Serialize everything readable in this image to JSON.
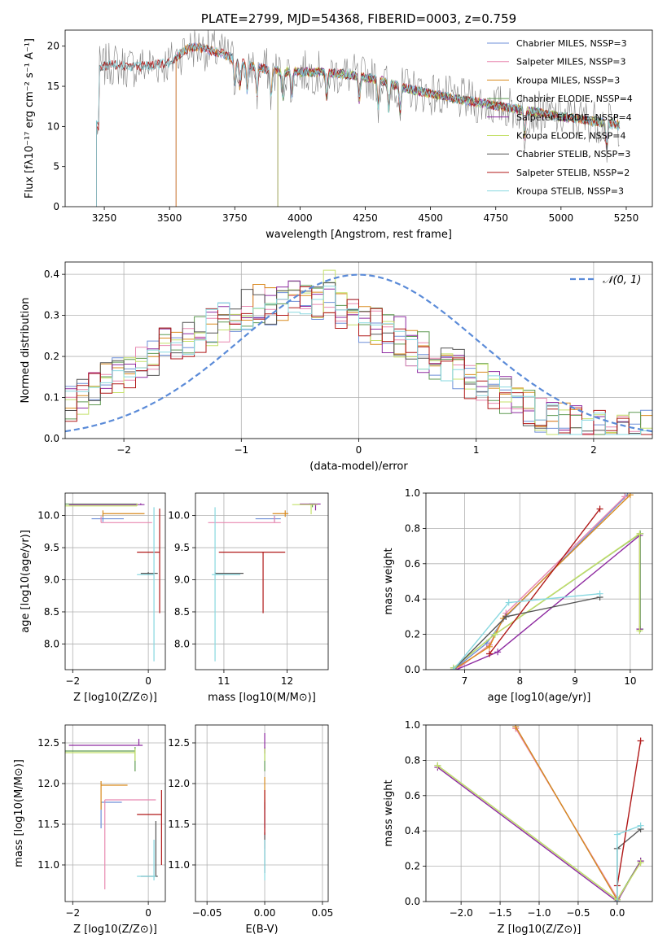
{
  "colors": {
    "Chabrier MILES": "#6e8fd8",
    "Salpeter MILES": "#e888b0",
    "Kroupa MILES": "#d98a1c",
    "Chabrier ELODIE": "#5e9a52",
    "Salpeter ELODIE": "#8e2aa0",
    "Kroupa ELODIE": "#c4e06a",
    "Chabrier STELIB": "#555555",
    "Salpeter STELIB": "#b01818",
    "Kroupa STELIB": "#88d8e0",
    "data": "#808080",
    "gaussian": "#5b8bd8"
  },
  "chart_data": [
    {
      "id": "spectrum",
      "type": "line",
      "title": "PLATE=2799, MJD=54368, FIBERID=0003, z=0.759",
      "xlabel": "wavelength [Angstrom, rest frame]",
      "ylabel": "Flux [fλ10⁻¹⁷ erg cm⁻² s⁻¹ A⁻¹]",
      "xlim": [
        3100,
        5350
      ],
      "ylim": [
        0,
        22
      ],
      "xticks": [
        3250,
        3500,
        3750,
        4000,
        4250,
        4500,
        4750,
        5000,
        5250
      ],
      "yticks": [
        0,
        5,
        10,
        15,
        20
      ],
      "grid": false,
      "legend_position": "top-right",
      "legend": [
        "Chabrier MILES, NSSP=3",
        "Salpeter MILES, NSSP=3",
        "Kroupa MILES, NSSP=3",
        "Chabrier ELODIE, NSSP=4",
        "Salpeter ELODIE, NSSP=4",
        "Kroupa ELODIE, NSSP=4",
        "Chabrier STELIB, NSSP=3",
        "Salpeter STELIB, NSSP=2",
        "Kroupa STELIB, NSSP=3"
      ],
      "continuum": {
        "x": [
          3230,
          3280,
          3350,
          3420,
          3500,
          3560,
          3600,
          3700,
          3800,
          3900,
          4000,
          4100,
          4200,
          4300,
          4400,
          4500,
          4600,
          4700,
          4800,
          4900,
          5000,
          5100,
          5200,
          5230
        ],
        "y": [
          17.3,
          17.8,
          17.4,
          17.6,
          17.9,
          19.6,
          19.9,
          19.1,
          17.6,
          16.9,
          16.8,
          16.7,
          16.4,
          15.8,
          14.8,
          14.1,
          13.4,
          12.9,
          12.3,
          11.8,
          11.2,
          10.8,
          10.3,
          10.1
        ]
      },
      "model_starts": {
        "MILES": 3525,
        "ELODIE": 3915,
        "STELIB": 3220,
        "data": 3220
      },
      "model_ends": {
        "MILES": 5225,
        "ELODIE": 5225,
        "STELIB": 5225,
        "data": 5225
      }
    },
    {
      "id": "residuals",
      "type": "step",
      "xlabel": "(data-model)/error",
      "ylabel": "Normed distribution",
      "xlim": [
        -2.5,
        2.5
      ],
      "ylim": [
        0,
        0.43
      ],
      "xticks": [
        -2,
        -1,
        0,
        1,
        2
      ],
      "yticks": [
        0.0,
        0.1,
        0.2,
        0.3,
        0.4
      ],
      "grid": true,
      "legend_position": "top-right",
      "legend": [
        "𝒩(0, 1)"
      ],
      "gaussian": {
        "mean": 0,
        "sigma": 1
      },
      "bin_width": 0.1,
      "bin_start": -2.5,
      "base_profile": [
        0.08,
        0.1,
        0.11,
        0.12,
        0.13,
        0.14,
        0.15,
        0.16,
        0.17,
        0.18,
        0.19,
        0.2,
        0.21,
        0.22,
        0.225,
        0.23,
        0.24,
        0.25,
        0.26,
        0.27,
        0.28,
        0.29,
        0.3,
        0.305,
        0.31,
        0.31,
        0.315,
        0.32,
        0.32,
        0.325,
        0.325,
        0.32,
        0.32,
        0.31,
        0.3,
        0.29,
        0.28,
        0.27,
        0.26,
        0.25,
        0.24,
        0.235,
        0.225,
        0.21,
        0.2,
        0.19,
        0.18,
        0.17,
        0.16,
        0.15,
        0.14,
        0.13,
        0.12,
        0.11,
        0.1,
        0.09,
        0.08,
        0.07,
        0.06,
        0.055,
        0.05,
        0.045,
        0.04,
        0.035,
        0.03,
        0.028,
        0.025,
        0.023,
        0.02,
        0.02,
        0.02,
        0.02,
        0.02
      ],
      "peaks": [
        {
          "model": "Kroupa ELODIE",
          "x": -0.3,
          "y": 0.41
        }
      ]
    },
    {
      "id": "age-vs-Z",
      "type": "errorbar",
      "xlabel": "Z [log10(Z/Z⊙)]",
      "ylabel": "age  [log10(age/yr)]",
      "xlim": [
        -2.2,
        0.45
      ],
      "ylim": [
        7.6,
        10.35
      ],
      "xticks": [
        -2,
        0
      ],
      "yticks": [
        8.0,
        8.5,
        9.0,
        9.5,
        10.0
      ],
      "grid": true,
      "points": [
        {
          "model": "Chabrier MILES",
          "x": -1.2,
          "xerr": [
            0.3,
            0.55
          ],
          "y": 9.95,
          "yerr": [
            0.05,
            0.05
          ]
        },
        {
          "model": "Salpeter MILES",
          "x": -1.25,
          "xerr": [
            0.0,
            1.35
          ],
          "y": 9.89,
          "yerr": [
            0.0,
            0.1
          ]
        },
        {
          "model": "Kroupa MILES",
          "x": -1.2,
          "xerr": [
            0.0,
            1.1
          ],
          "y": 10.03,
          "yerr": [
            0.05,
            0.05
          ]
        },
        {
          "model": "Chabrier ELODIE",
          "x": -0.3,
          "xerr": [
            1.9,
            0.0
          ],
          "y": 10.18,
          "yerr": [
            0.02,
            0.0
          ]
        },
        {
          "model": "Salpeter ELODIE",
          "x": -0.2,
          "xerr": [
            1.9,
            0.1
          ],
          "y": 10.17,
          "yerr": [
            0.0,
            0.02
          ]
        },
        {
          "model": "Kroupa ELODIE",
          "x": -0.3,
          "xerr": [
            1.9,
            0.0
          ],
          "y": 10.15,
          "yerr": [
            0.0,
            0.04
          ]
        },
        {
          "model": "Chabrier STELIB",
          "x": 0.0,
          "xerr": [
            0.2,
            0.25
          ],
          "y": 9.1,
          "yerr": [
            0.02,
            0.02
          ]
        },
        {
          "model": "Salpeter STELIB",
          "x": 0.3,
          "xerr": [
            0.6,
            0.0
          ],
          "y": 9.43,
          "yerr": [
            0.95,
            0.68
          ]
        },
        {
          "model": "Kroupa STELIB",
          "x": 0.15,
          "xerr": [
            0.45,
            0.0
          ],
          "y": 9.08,
          "yerr": [
            1.35,
            1.05
          ]
        }
      ]
    },
    {
      "id": "age-vs-mass",
      "type": "errorbar",
      "xlabel": "mass [log10(M/M⊙)]",
      "ylabel": "",
      "xlim": [
        10.55,
        12.65
      ],
      "ylim": [
        7.6,
        10.35
      ],
      "xticks": [
        11,
        12
      ],
      "yticks": [
        8.0,
        8.5,
        9.0,
        9.5,
        10.0
      ],
      "grid": true,
      "points": [
        {
          "model": "Chabrier MILES",
          "x": 11.8,
          "xerr": [
            0.3,
            0.1
          ],
          "y": 9.95,
          "yerr": [
            0.05,
            0.05
          ]
        },
        {
          "model": "Salpeter MILES",
          "x": 11.8,
          "xerr": [
            1.05,
            0.1
          ],
          "y": 9.89,
          "yerr": [
            0.0,
            0.1
          ]
        },
        {
          "model": "Kroupa MILES",
          "x": 11.97,
          "xerr": [
            0.2,
            0.05
          ],
          "y": 10.03,
          "yerr": [
            0.05,
            0.05
          ]
        },
        {
          "model": "Chabrier ELODIE",
          "x": 12.4,
          "xerr": [
            0.05,
            0.05
          ],
          "y": 10.18,
          "yerr": [
            0.05,
            0.0
          ]
        },
        {
          "model": "Salpeter ELODIE",
          "x": 12.45,
          "xerr": [
            0.25,
            0.08
          ],
          "y": 10.18,
          "yerr": [
            0.1,
            0.0
          ]
        },
        {
          "model": "Kroupa ELODIE",
          "x": 12.38,
          "xerr": [
            0.3,
            0.1
          ],
          "y": 10.17,
          "yerr": [
            0.15,
            0.0
          ]
        },
        {
          "model": "Chabrier STELIB",
          "x": 10.86,
          "xerr": [
            0.0,
            0.45
          ],
          "y": 9.1,
          "yerr": [
            0.0,
            0.02
          ]
        },
        {
          "model": "Salpeter STELIB",
          "x": 11.62,
          "xerr": [
            0.7,
            0.35
          ],
          "y": 9.43,
          "yerr": [
            0.95,
            0.0
          ]
        },
        {
          "model": "Kroupa STELIB",
          "x": 10.86,
          "xerr": [
            0.05,
            0.4
          ],
          "y": 9.08,
          "yerr": [
            1.35,
            1.05
          ]
        }
      ]
    },
    {
      "id": "mass-weight-vs-age",
      "type": "line",
      "xlabel": "age  [log10(age/yr)]",
      "ylabel": "mass weight",
      "xlim": [
        6.3,
        10.4
      ],
      "ylim": [
        0,
        1
      ],
      "xticks": [
        7,
        8,
        9,
        10
      ],
      "yticks": [
        0.0,
        0.2,
        0.4,
        0.6,
        0.8,
        1.0
      ],
      "grid": true,
      "series": [
        {
          "model": "Chabrier MILES",
          "x": [
            6.8,
            7.4,
            7.75,
            9.95
          ],
          "y": [
            0.0,
            0.15,
            0.3,
            0.99
          ]
        },
        {
          "model": "Salpeter MILES",
          "x": [
            6.85,
            7.45,
            7.75,
            9.9
          ],
          "y": [
            0.0,
            0.14,
            0.32,
            0.98
          ]
        },
        {
          "model": "Kroupa MILES",
          "x": [
            6.8,
            7.45,
            7.7,
            10.0
          ],
          "y": [
            0.0,
            0.13,
            0.29,
            0.99
          ]
        },
        {
          "model": "Chabrier ELODIE",
          "x": [
            6.8,
            7.55,
            10.18,
            10.18
          ],
          "y": [
            0.01,
            0.2,
            0.77,
            0.23
          ]
        },
        {
          "model": "Salpeter ELODIE",
          "x": [
            6.85,
            7.6,
            10.17,
            10.17
          ],
          "y": [
            0.0,
            0.1,
            0.76,
            0.23
          ]
        },
        {
          "model": "Kroupa ELODIE",
          "x": [
            6.8,
            7.55,
            10.17,
            10.17
          ],
          "y": [
            0.01,
            0.2,
            0.77,
            0.22
          ]
        },
        {
          "model": "Chabrier STELIB",
          "x": [
            6.8,
            7.75,
            9.45
          ],
          "y": [
            0.0,
            0.3,
            0.41
          ]
        },
        {
          "model": "Salpeter STELIB",
          "x": [
            7.45,
            9.45
          ],
          "y": [
            0.09,
            0.91
          ]
        },
        {
          "model": "Kroupa STELIB",
          "x": [
            6.8,
            7.8,
            9.45
          ],
          "y": [
            0.0,
            0.38,
            0.43
          ]
        }
      ]
    },
    {
      "id": "mass-vs-Z",
      "type": "errorbar",
      "xlabel": "Z [log10(Z/Z⊙)]",
      "ylabel": "mass [log10(M/M⊙)]",
      "xlim": [
        -2.2,
        0.45
      ],
      "ylim": [
        10.55,
        12.72
      ],
      "xticks": [
        -2,
        0
      ],
      "yticks": [
        11.0,
        11.5,
        12.0,
        12.5
      ],
      "grid": true,
      "points": [
        {
          "model": "Chabrier MILES",
          "x": -1.25,
          "xerr": [
            0.0,
            0.55
          ],
          "y": 11.77,
          "yerr": [
            0.32,
            0.0
          ]
        },
        {
          "model": "Salpeter MILES",
          "x": -1.15,
          "xerr": [
            0.0,
            1.35
          ],
          "y": 11.8,
          "yerr": [
            1.1,
            0.0
          ]
        },
        {
          "model": "Kroupa MILES",
          "x": -1.25,
          "xerr": [
            0.0,
            0.7
          ],
          "y": 11.98,
          "yerr": [
            0.3,
            0.05
          ]
        },
        {
          "model": "Chabrier ELODIE",
          "x": -0.35,
          "xerr": [
            1.85,
            0.0
          ],
          "y": 12.4,
          "yerr": [
            0.25,
            0.05
          ]
        },
        {
          "model": "Salpeter ELODIE",
          "x": -0.25,
          "xerr": [
            1.85,
            0.1
          ],
          "y": 12.47,
          "yerr": [
            0.0,
            0.08
          ]
        },
        {
          "model": "Kroupa ELODIE",
          "x": -0.35,
          "xerr": [
            1.85,
            0.0
          ],
          "y": 12.38,
          "yerr": [
            0.1,
            0.05
          ]
        },
        {
          "model": "Chabrier STELIB",
          "x": 0.2,
          "xerr": [
            0.4,
            0.05
          ],
          "y": 10.86,
          "yerr": [
            0.0,
            0.68
          ]
        },
        {
          "model": "Salpeter STELIB",
          "x": 0.35,
          "xerr": [
            0.65,
            0.0
          ],
          "y": 11.62,
          "yerr": [
            0.62,
            0.3
          ]
        },
        {
          "model": "Kroupa STELIB",
          "x": 0.15,
          "xerr": [
            0.45,
            0.05
          ],
          "y": 10.86,
          "yerr": [
            0.05,
            0.45
          ]
        }
      ]
    },
    {
      "id": "mass-vs-EBV",
      "type": "errorbar",
      "xlabel": "E(B-V)",
      "ylabel": "",
      "xlim": [
        -0.06,
        0.055
      ],
      "ylim": [
        10.55,
        12.72
      ],
      "xticks": [
        -0.05,
        0.0,
        0.05
      ],
      "yticks": [
        11.0,
        11.5,
        12.0,
        12.5
      ],
      "grid": true,
      "points": [
        {
          "model": "Chabrier MILES",
          "x": 0.0,
          "xerr": [
            0.0,
            0.0
          ],
          "y": 11.77,
          "yerr": [
            0.32,
            0.0
          ]
        },
        {
          "model": "Salpeter MILES",
          "x": 0.0,
          "xerr": [
            0.0,
            0.0
          ],
          "y": 11.8,
          "yerr": [
            0.6,
            0.0
          ]
        },
        {
          "model": "Kroupa MILES",
          "x": 0.0,
          "xerr": [
            0.0,
            0.0
          ],
          "y": 11.98,
          "yerr": [
            0.3,
            0.1
          ]
        },
        {
          "model": "Chabrier ELODIE",
          "x": 0.0,
          "xerr": [
            0.0,
            0.0
          ],
          "y": 12.4,
          "yerr": [
            0.25,
            0.05
          ]
        },
        {
          "model": "Salpeter ELODIE",
          "x": 0.0,
          "xerr": [
            0.0,
            0.0
          ],
          "y": 12.47,
          "yerr": [
            0.1,
            0.15
          ]
        },
        {
          "model": "Kroupa ELODIE",
          "x": 0.0,
          "xerr": [
            0.0,
            0.0
          ],
          "y": 12.38,
          "yerr": [
            0.1,
            0.05
          ]
        },
        {
          "model": "Chabrier STELIB",
          "x": 0.0,
          "xerr": [
            0.0,
            0.0
          ],
          "y": 11.2,
          "yerr": [
            0.3,
            0.2
          ]
        },
        {
          "model": "Salpeter STELIB",
          "x": 0.0,
          "xerr": [
            0.0,
            0.0
          ],
          "y": 11.62,
          "yerr": [
            0.25,
            0.3
          ]
        },
        {
          "model": "Kroupa STELIB",
          "x": 0.0,
          "xerr": [
            0.0,
            0.0
          ],
          "y": 10.86,
          "yerr": [
            0.05,
            0.45
          ]
        }
      ]
    },
    {
      "id": "mass-weight-vs-Z",
      "type": "line",
      "xlabel": "Z [log10(Z/Z⊙)]",
      "ylabel": "mass weight",
      "xlim": [
        -2.45,
        0.45
      ],
      "ylim": [
        0,
        1
      ],
      "xticks": [
        -2.0,
        -1.5,
        -1.0,
        -0.5,
        0.0
      ],
      "yticks": [
        0.0,
        0.2,
        0.4,
        0.6,
        0.8,
        1.0
      ],
      "grid": true,
      "series": [
        {
          "model": "Chabrier MILES",
          "x": [
            -1.3,
            0.0
          ],
          "y": [
            0.99,
            0.01
          ]
        },
        {
          "model": "Salpeter MILES",
          "x": [
            -1.3,
            0.0
          ],
          "y": [
            0.98,
            0.02
          ]
        },
        {
          "model": "Kroupa MILES",
          "x": [
            -1.3,
            0.0
          ],
          "y": [
            0.99,
            0.01
          ]
        },
        {
          "model": "Chabrier ELODIE",
          "x": [
            -2.3,
            0.0,
            0.3
          ],
          "y": [
            0.77,
            0.01,
            0.23
          ]
        },
        {
          "model": "Salpeter ELODIE",
          "x": [
            -2.3,
            0.0,
            0.3
          ],
          "y": [
            0.76,
            0.0,
            0.23
          ]
        },
        {
          "model": "Kroupa ELODIE",
          "x": [
            -2.3,
            0.0,
            0.3
          ],
          "y": [
            0.77,
            0.01,
            0.22
          ]
        },
        {
          "model": "Chabrier STELIB",
          "x": [
            0.0,
            0.0,
            0.3
          ],
          "y": [
            0.0,
            0.3,
            0.41
          ]
        },
        {
          "model": "Salpeter STELIB",
          "x": [
            0.0,
            0.3
          ],
          "y": [
            0.09,
            0.91
          ]
        },
        {
          "model": "Kroupa STELIB",
          "x": [
            0.0,
            0.0,
            0.3
          ],
          "y": [
            0.0,
            0.38,
            0.43
          ]
        }
      ]
    }
  ]
}
